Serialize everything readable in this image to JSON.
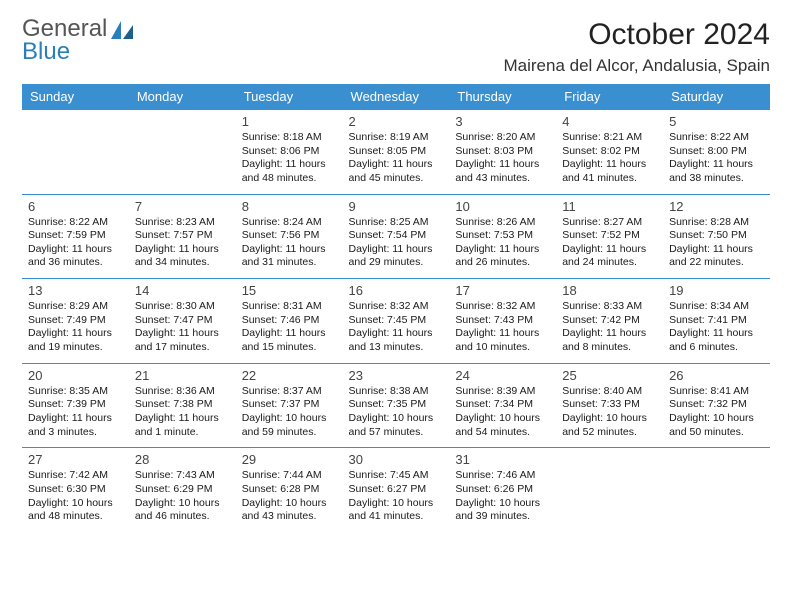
{
  "logo": {
    "line1": "General",
    "line2": "Blue"
  },
  "title": "October 2024",
  "location": "Mairena del Alcor, Andalusia, Spain",
  "colors": {
    "header_bg": "#3a8fd0",
    "header_text": "#ffffff",
    "row_border": "#3a8fd0",
    "logo_general": "#555555",
    "logo_blue": "#2a7fba",
    "body_text": "#1a1a1a"
  },
  "weekdays": [
    "Sunday",
    "Monday",
    "Tuesday",
    "Wednesday",
    "Thursday",
    "Friday",
    "Saturday"
  ],
  "weeks": [
    [
      null,
      null,
      {
        "n": "1",
        "sr": "Sunrise: 8:18 AM",
        "ss": "Sunset: 8:06 PM",
        "dl": "Daylight: 11 hours and 48 minutes."
      },
      {
        "n": "2",
        "sr": "Sunrise: 8:19 AM",
        "ss": "Sunset: 8:05 PM",
        "dl": "Daylight: 11 hours and 45 minutes."
      },
      {
        "n": "3",
        "sr": "Sunrise: 8:20 AM",
        "ss": "Sunset: 8:03 PM",
        "dl": "Daylight: 11 hours and 43 minutes."
      },
      {
        "n": "4",
        "sr": "Sunrise: 8:21 AM",
        "ss": "Sunset: 8:02 PM",
        "dl": "Daylight: 11 hours and 41 minutes."
      },
      {
        "n": "5",
        "sr": "Sunrise: 8:22 AM",
        "ss": "Sunset: 8:00 PM",
        "dl": "Daylight: 11 hours and 38 minutes."
      }
    ],
    [
      {
        "n": "6",
        "sr": "Sunrise: 8:22 AM",
        "ss": "Sunset: 7:59 PM",
        "dl": "Daylight: 11 hours and 36 minutes."
      },
      {
        "n": "7",
        "sr": "Sunrise: 8:23 AM",
        "ss": "Sunset: 7:57 PM",
        "dl": "Daylight: 11 hours and 34 minutes."
      },
      {
        "n": "8",
        "sr": "Sunrise: 8:24 AM",
        "ss": "Sunset: 7:56 PM",
        "dl": "Daylight: 11 hours and 31 minutes."
      },
      {
        "n": "9",
        "sr": "Sunrise: 8:25 AM",
        "ss": "Sunset: 7:54 PM",
        "dl": "Daylight: 11 hours and 29 minutes."
      },
      {
        "n": "10",
        "sr": "Sunrise: 8:26 AM",
        "ss": "Sunset: 7:53 PM",
        "dl": "Daylight: 11 hours and 26 minutes."
      },
      {
        "n": "11",
        "sr": "Sunrise: 8:27 AM",
        "ss": "Sunset: 7:52 PM",
        "dl": "Daylight: 11 hours and 24 minutes."
      },
      {
        "n": "12",
        "sr": "Sunrise: 8:28 AM",
        "ss": "Sunset: 7:50 PM",
        "dl": "Daylight: 11 hours and 22 minutes."
      }
    ],
    [
      {
        "n": "13",
        "sr": "Sunrise: 8:29 AM",
        "ss": "Sunset: 7:49 PM",
        "dl": "Daylight: 11 hours and 19 minutes."
      },
      {
        "n": "14",
        "sr": "Sunrise: 8:30 AM",
        "ss": "Sunset: 7:47 PM",
        "dl": "Daylight: 11 hours and 17 minutes."
      },
      {
        "n": "15",
        "sr": "Sunrise: 8:31 AM",
        "ss": "Sunset: 7:46 PM",
        "dl": "Daylight: 11 hours and 15 minutes."
      },
      {
        "n": "16",
        "sr": "Sunrise: 8:32 AM",
        "ss": "Sunset: 7:45 PM",
        "dl": "Daylight: 11 hours and 13 minutes."
      },
      {
        "n": "17",
        "sr": "Sunrise: 8:32 AM",
        "ss": "Sunset: 7:43 PM",
        "dl": "Daylight: 11 hours and 10 minutes."
      },
      {
        "n": "18",
        "sr": "Sunrise: 8:33 AM",
        "ss": "Sunset: 7:42 PM",
        "dl": "Daylight: 11 hours and 8 minutes."
      },
      {
        "n": "19",
        "sr": "Sunrise: 8:34 AM",
        "ss": "Sunset: 7:41 PM",
        "dl": "Daylight: 11 hours and 6 minutes."
      }
    ],
    [
      {
        "n": "20",
        "sr": "Sunrise: 8:35 AM",
        "ss": "Sunset: 7:39 PM",
        "dl": "Daylight: 11 hours and 3 minutes."
      },
      {
        "n": "21",
        "sr": "Sunrise: 8:36 AM",
        "ss": "Sunset: 7:38 PM",
        "dl": "Daylight: 11 hours and 1 minute."
      },
      {
        "n": "22",
        "sr": "Sunrise: 8:37 AM",
        "ss": "Sunset: 7:37 PM",
        "dl": "Daylight: 10 hours and 59 minutes."
      },
      {
        "n": "23",
        "sr": "Sunrise: 8:38 AM",
        "ss": "Sunset: 7:35 PM",
        "dl": "Daylight: 10 hours and 57 minutes."
      },
      {
        "n": "24",
        "sr": "Sunrise: 8:39 AM",
        "ss": "Sunset: 7:34 PM",
        "dl": "Daylight: 10 hours and 54 minutes."
      },
      {
        "n": "25",
        "sr": "Sunrise: 8:40 AM",
        "ss": "Sunset: 7:33 PM",
        "dl": "Daylight: 10 hours and 52 minutes."
      },
      {
        "n": "26",
        "sr": "Sunrise: 8:41 AM",
        "ss": "Sunset: 7:32 PM",
        "dl": "Daylight: 10 hours and 50 minutes."
      }
    ],
    [
      {
        "n": "27",
        "sr": "Sunrise: 7:42 AM",
        "ss": "Sunset: 6:30 PM",
        "dl": "Daylight: 10 hours and 48 minutes."
      },
      {
        "n": "28",
        "sr": "Sunrise: 7:43 AM",
        "ss": "Sunset: 6:29 PM",
        "dl": "Daylight: 10 hours and 46 minutes."
      },
      {
        "n": "29",
        "sr": "Sunrise: 7:44 AM",
        "ss": "Sunset: 6:28 PM",
        "dl": "Daylight: 10 hours and 43 minutes."
      },
      {
        "n": "30",
        "sr": "Sunrise: 7:45 AM",
        "ss": "Sunset: 6:27 PM",
        "dl": "Daylight: 10 hours and 41 minutes."
      },
      {
        "n": "31",
        "sr": "Sunrise: 7:46 AM",
        "ss": "Sunset: 6:26 PM",
        "dl": "Daylight: 10 hours and 39 minutes."
      },
      null,
      null
    ]
  ]
}
